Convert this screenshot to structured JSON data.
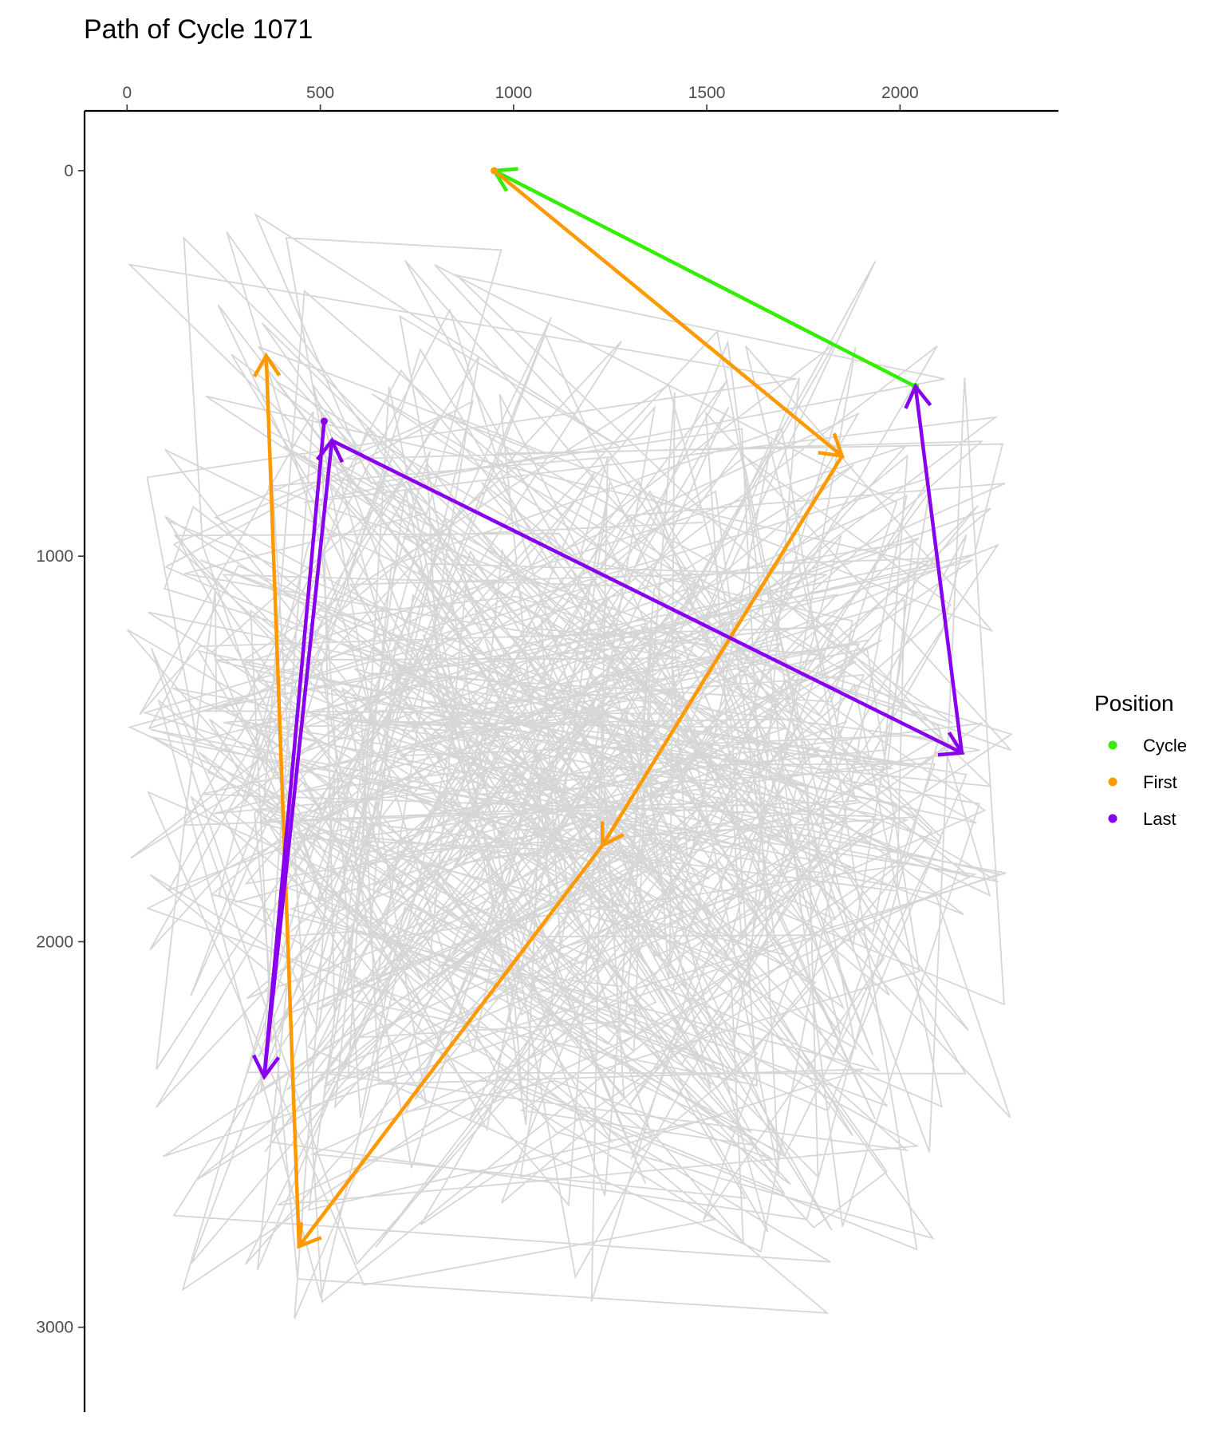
{
  "chart_data": {
    "type": "line",
    "title": "Path of Cycle 1071",
    "xlabel": "",
    "ylabel": "",
    "x_axis_position": "top",
    "y_axis_reversed": true,
    "xlim": [
      -110,
      2410
    ],
    "ylim": [
      -155,
      3220
    ],
    "x_ticks": [
      0,
      500,
      1000,
      1500,
      2000
    ],
    "x_tick_labels": [
      "0",
      "500",
      "1000",
      "1500",
      "2000"
    ],
    "y_ticks": [
      0,
      1000,
      2000,
      3000
    ],
    "y_tick_labels": [
      "0",
      "1000",
      "2000",
      "3000"
    ],
    "grid": false,
    "legend": {
      "title": "Position",
      "placement": "right",
      "entries": [
        {
          "label": "Cycle",
          "color": "#33ee00"
        },
        {
          "label": "First",
          "color": "#ff9900"
        },
        {
          "label": "Last",
          "color": "#8800ee"
        }
      ]
    },
    "background_path_color": "#bdbdbd",
    "background_path": {
      "type": "random-walk",
      "count": 650,
      "x_range": [
        0,
        2290
      ],
      "y_range": [
        60,
        3080
      ]
    },
    "series": [
      {
        "name": "Cycle",
        "color": "#33ee00",
        "points": [
          [
            2040,
            560
          ],
          [
            950,
            0
          ]
        ]
      },
      {
        "name": "First",
        "color": "#ff9900",
        "points": [
          [
            950,
            0
          ],
          [
            1850,
            740
          ],
          [
            1230,
            1750
          ],
          [
            445,
            2790
          ],
          [
            360,
            480
          ]
        ]
      },
      {
        "name": "Last",
        "color": "#8800ee",
        "points": [
          [
            510,
            650
          ],
          [
            355,
            2350
          ],
          [
            530,
            700
          ],
          [
            2160,
            1510
          ],
          [
            2040,
            560
          ]
        ]
      }
    ]
  }
}
